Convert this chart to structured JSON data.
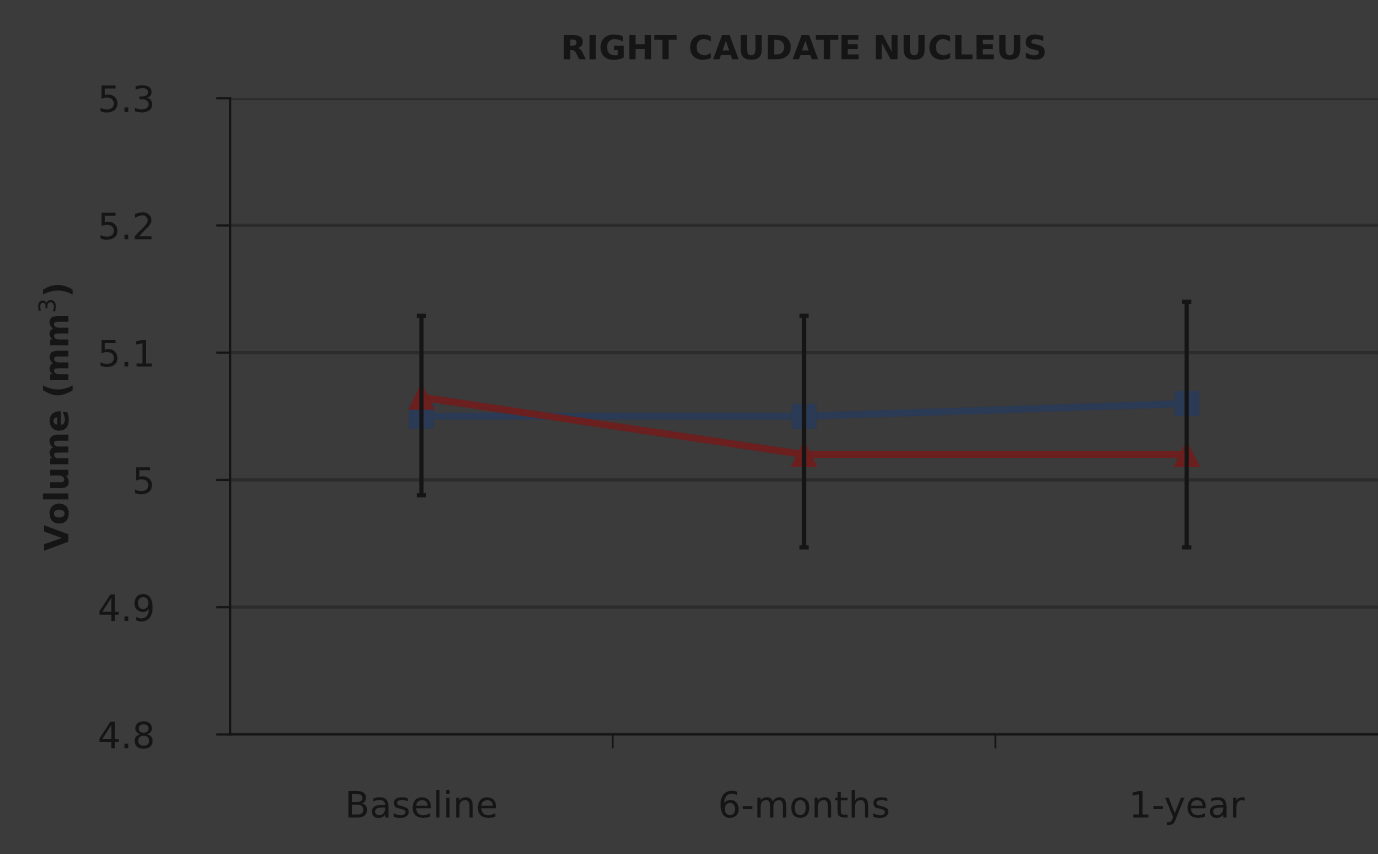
{
  "chart_data": {
    "type": "line",
    "title": "RIGHT CAUDATE NUCLEUS",
    "ylabel": "Volume (mm$^{3}$)",
    "categories": [
      "Baseline",
      "6-months",
      "1-year"
    ],
    "series": [
      {
        "color": "#2b3a55",
        "marker": "square",
        "values": [
          5.05,
          5.05,
          5.06
        ],
        "errors": [
          [
            4.988,
            5.129
          ],
          [
            4.947,
            5.129
          ],
          [
            4.947,
            5.14
          ]
        ]
      },
      {
        "color": "#6b1f1f",
        "marker": "triangle",
        "values": [
          5.065,
          5.02,
          5.02
        ]
      }
    ],
    "ylim": [
      4.8,
      5.3
    ],
    "yticks": [
      4.8,
      4.9,
      5,
      5.1,
      5.2,
      5.3
    ],
    "grid": "y",
    "legend": false,
    "line_style": "solid"
  }
}
